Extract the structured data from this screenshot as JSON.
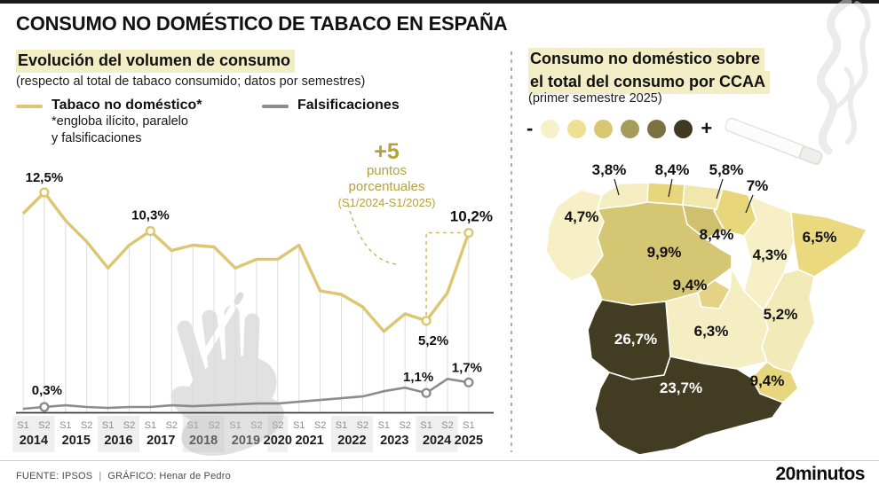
{
  "page": {
    "title": "CONSUMO NO DOMÉSTICO DE TABACO EN ESPAÑA"
  },
  "left_panel": {
    "title": "Evolución del volumen de consumo",
    "subtitle": "(respecto al total de tabaco consumido; datos por semestres)",
    "legend_tabaco": {
      "label": "Tabaco no doméstico*",
      "footnote_line1": "*engloba ilícito, paralelo",
      "footnote_line2": "y falsificaciones",
      "color": "#ddc672"
    },
    "legend_falsificaciones": {
      "label": "Falsificaciones",
      "color": "#8c8c8c"
    },
    "annotation": {
      "headline": "+5",
      "line1": "puntos",
      "line2": "porcentuales",
      "line3": "(S1/2024-S1/2025)",
      "color": "#b5a23c"
    }
  },
  "right_panel": {
    "title_line1": "Consumo no doméstico sobre",
    "title_line2": "el total del consumo por CCAA",
    "subtitle": "(primer semestre 2025)",
    "scale": {
      "minus": "-",
      "plus": "+"
    }
  },
  "footer": {
    "source": "FUENTE: IPSOS",
    "separator": "|",
    "credit": "GRÁFICO: Henar de Pedro",
    "brand": "20minutos"
  },
  "colors": {
    "accent_yellow": "#ddc672",
    "gray_line": "#8c8c8c",
    "highlight_bg": "#f3edc6",
    "annotation_gold": "#b5a23c",
    "axis_shade": "#efefef"
  },
  "chart_data": [
    {
      "type": "line",
      "title": "Evolución del volumen de consumo",
      "subtitle": "(respecto al total de tabaco consumido; datos por semestres)",
      "unit": "%",
      "ylim": [
        0,
        14
      ],
      "grid": "vertical drop lines per data point, no y-axis labels",
      "legend_position": "top-left",
      "x_groups": [
        {
          "year": "2014",
          "semesters": [
            "S1",
            "S2"
          ],
          "shaded": true
        },
        {
          "year": "2015",
          "semesters": [
            "S1",
            "S2"
          ],
          "shaded": false
        },
        {
          "year": "2016",
          "semesters": [
            "S1",
            "S2"
          ],
          "shaded": true
        },
        {
          "year": "2017",
          "semesters": [
            "S1",
            "S2"
          ],
          "shaded": false
        },
        {
          "year": "2018",
          "semesters": [
            "S1",
            "S2"
          ],
          "shaded": true
        },
        {
          "year": "2019",
          "semesters": [
            "S1",
            "S2"
          ],
          "shaded": false
        },
        {
          "year": "2020",
          "semesters": [
            "S2"
          ],
          "shaded": true
        },
        {
          "year": "2021",
          "semesters": [
            "S1",
            "S2"
          ],
          "shaded": false
        },
        {
          "year": "2022",
          "semesters": [
            "S1",
            "S2"
          ],
          "shaded": true
        },
        {
          "year": "2023",
          "semesters": [
            "S1",
            "S2"
          ],
          "shaded": false
        },
        {
          "year": "2024",
          "semesters": [
            "S1",
            "S2"
          ],
          "shaded": true
        },
        {
          "year": "2025",
          "semesters": [
            "S1"
          ],
          "shaded": false
        }
      ],
      "series": [
        {
          "name": "Tabaco no doméstico*",
          "color": "#ddc672",
          "values": [
            11.3,
            12.5,
            10.9,
            9.7,
            8.2,
            9.5,
            10.3,
            9.2,
            9.5,
            9.4,
            8.2,
            8.7,
            8.7,
            9.5,
            6.9,
            6.7,
            6.0,
            4.6,
            5.6,
            5.2,
            6.8,
            10.2
          ]
        },
        {
          "name": "Falsificaciones",
          "color": "#8c8c8c",
          "values": [
            0.2,
            0.3,
            0.4,
            0.3,
            0.25,
            0.3,
            0.3,
            0.4,
            0.35,
            0.4,
            0.45,
            0.5,
            0.5,
            0.6,
            0.7,
            0.8,
            0.9,
            1.2,
            1.4,
            1.1,
            1.9,
            1.7
          ]
        }
      ],
      "point_labels": [
        {
          "series": 0,
          "index": 1,
          "text": "12,5%"
        },
        {
          "series": 0,
          "index": 6,
          "text": "10,3%"
        },
        {
          "series": 0,
          "index": 19,
          "text": "5,2%"
        },
        {
          "series": 0,
          "index": 21,
          "text": "10,2%"
        },
        {
          "series": 1,
          "index": 1,
          "text": "0,3%"
        },
        {
          "series": 1,
          "index": 19,
          "text": "1,1%"
        },
        {
          "series": 1,
          "index": 21,
          "text": "1,7%"
        }
      ],
      "annotation": {
        "text": "+5 puntos porcentuales (S1/2024-S1/2025)",
        "from_index": 19,
        "to_index": 21
      }
    },
    {
      "type": "choropleth",
      "title": "Consumo no doméstico sobre el total del consumo por CCAA",
      "subtitle": "(primer semestre 2025)",
      "unit": "%",
      "scale_colors": [
        "#f8f0c9",
        "#eee093",
        "#d9c672",
        "#a49d59",
        "#7b733f",
        "#3f3a1f"
      ],
      "regions": [
        {
          "id": "galicia",
          "name": "Galicia",
          "value": 4.7,
          "label": "4,7%",
          "color": "#f7efc6",
          "label_style": "dark"
        },
        {
          "id": "asturias",
          "name": "Asturias",
          "value": 3.8,
          "label": "3,8%",
          "color": "#f5edc2",
          "label_style": "dark",
          "pointer": true
        },
        {
          "id": "cantabria",
          "name": "Cantabria",
          "value": 8.4,
          "label": "8,4%",
          "color": "#e8d67d",
          "label_style": "dark",
          "pointer": true
        },
        {
          "id": "pais-vasco",
          "name": "País Vasco",
          "value": 5.8,
          "label": "5,8%",
          "color": "#f1e6ac",
          "label_style": "dark",
          "pointer": true
        },
        {
          "id": "navarra",
          "name": "Navarra",
          "value": 7,
          "label": "7%",
          "color": "#e8d67d",
          "label_style": "dark",
          "pointer": true
        },
        {
          "id": "castilla-y-leon",
          "name": "Castilla y León",
          "value": 9.9,
          "label": "9,9%",
          "color": "#d5c673",
          "label_style": "dark"
        },
        {
          "id": "la-rioja",
          "name": "La Rioja",
          "value": 8.4,
          "label": "8,4%",
          "color": "#cec06d",
          "label_style": "dark"
        },
        {
          "id": "aragon",
          "name": "Aragón",
          "value": 4.3,
          "label": "4,3%",
          "color": "#f7efc6",
          "label_style": "dark"
        },
        {
          "id": "cataluna",
          "name": "Cataluña",
          "value": 6.5,
          "label": "6,5%",
          "color": "#ead97f",
          "label_style": "dark"
        },
        {
          "id": "castilla-la-mancha",
          "name": "Castilla-La Mancha",
          "value": 6.3,
          "label": "6,3%",
          "color": "#f6eec3",
          "label_style": "dark"
        },
        {
          "id": "madrid",
          "name": "Comunidad de Madrid",
          "value": 9.4,
          "label": "9,4%",
          "color": "#e5d385",
          "label_style": "dark"
        },
        {
          "id": "comunidad-valenciana",
          "name": "Comunidad Valenciana",
          "value": 5.2,
          "label": "5,2%",
          "color": "#f3eaba",
          "label_style": "dark"
        },
        {
          "id": "extremadura",
          "name": "Extremadura",
          "value": 26.7,
          "label": "26,7%",
          "color": "#423d22",
          "label_style": "light"
        },
        {
          "id": "murcia",
          "name": "Región de Murcia",
          "value": 9.4,
          "label": "9,4%",
          "color": "#e8d67d",
          "label_style": "dark"
        },
        {
          "id": "andalucia",
          "name": "Andalucía",
          "value": 23.7,
          "label": "23,7%",
          "color": "#423d22",
          "label_style": "light"
        }
      ]
    }
  ]
}
